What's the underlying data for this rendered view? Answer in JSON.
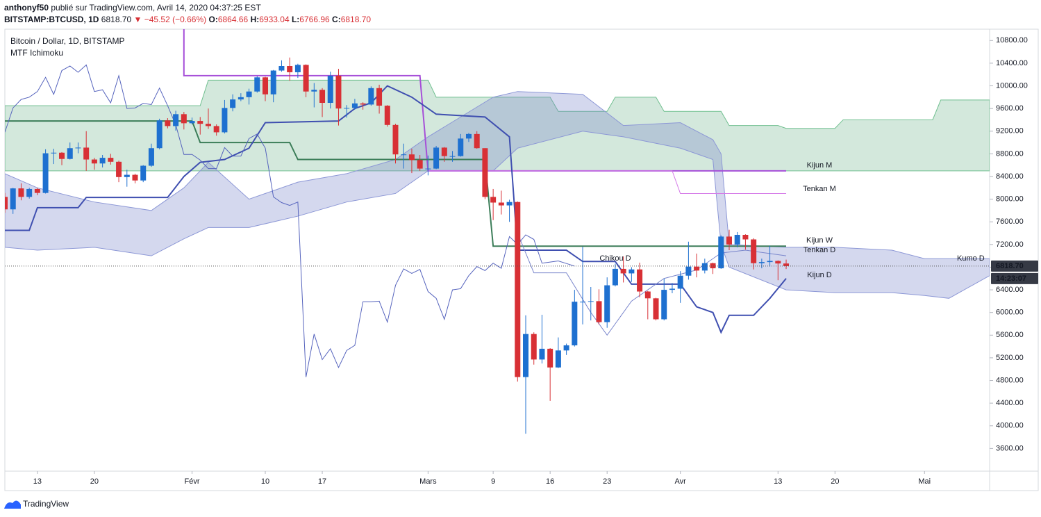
{
  "header": {
    "author": "anthonyf50",
    "published": "publié sur TradingView.com, Avril 14, 2020 04:37:25 EST",
    "symbol": "BITSTAMP:BTCUSD, 1D",
    "price": "6818.70",
    "change": "▼ −45.52 (−0.66%)",
    "quote": [
      {
        "key": "O:",
        "value": "6864.66"
      },
      {
        "key": "H:",
        "value": "6933.04"
      },
      {
        "key": "L:",
        "value": "6766.96"
      },
      {
        "key": "C:",
        "value": "6818.70"
      }
    ]
  },
  "legend": {
    "instrument": "Bitcoin / Dollar, 1D, BITSTAMP",
    "indicator": "MTF Ichimoku"
  },
  "footer": {
    "brand": "TradingView"
  },
  "chart_data": {
    "type": "candlestick",
    "x": [
      "01-09",
      "01-10",
      "01-11",
      "01-12",
      "01-13",
      "01-14",
      "01-15",
      "01-16",
      "01-17",
      "01-18",
      "01-19",
      "01-20",
      "01-21",
      "01-22",
      "01-23",
      "01-24",
      "01-25",
      "01-26",
      "01-27",
      "01-28",
      "01-29",
      "01-30",
      "01-31",
      "02-01",
      "02-02",
      "02-03",
      "02-04",
      "02-05",
      "02-06",
      "02-07",
      "02-08",
      "02-09",
      "02-10",
      "02-11",
      "02-12",
      "02-13",
      "02-14",
      "02-15",
      "02-16",
      "02-17",
      "02-18",
      "02-19",
      "02-20",
      "02-21",
      "02-22",
      "02-23",
      "02-24",
      "02-25",
      "02-26",
      "02-27",
      "02-28",
      "02-29",
      "03-01",
      "03-02",
      "03-03",
      "03-04",
      "03-05",
      "03-06",
      "03-07",
      "03-08",
      "03-09",
      "03-10",
      "03-11",
      "03-12",
      "03-13",
      "03-14",
      "03-15",
      "03-16",
      "03-17",
      "03-18",
      "03-19",
      "03-20",
      "03-21",
      "03-22",
      "03-23",
      "03-24",
      "03-25",
      "03-26",
      "03-27",
      "03-28",
      "03-29",
      "03-30",
      "03-31",
      "04-01",
      "04-02",
      "04-03",
      "04-04",
      "04-05",
      "04-06",
      "04-07",
      "04-08",
      "04-09",
      "04-10",
      "04-11",
      "04-12",
      "04-13",
      "04-14"
    ],
    "open": [
      8040,
      7820,
      8190,
      8040,
      8180,
      8110,
      8810,
      8820,
      8710,
      8900,
      8910,
      8700,
      8630,
      8730,
      8660,
      8390,
      8430,
      8330,
      8590,
      8900,
      9390,
      9290,
      9500,
      9340,
      9380,
      9330,
      9290,
      9180,
      9610,
      9760,
      9800,
      9900,
      10150,
      9850,
      10270,
      10350,
      10240,
      10370,
      9900,
      9930,
      9700,
      10180,
      9600,
      9610,
      9690,
      9670,
      9960,
      9650,
      9310,
      8790,
      8790,
      8690,
      8540,
      8540,
      8910,
      8760,
      8760,
      9070,
      9150,
      8900,
      8040,
      7940,
      7890,
      7950,
      4860,
      5620,
      5170,
      5360,
      5030,
      5330,
      5420,
      6190,
      6190,
      6200,
      5830,
      6480,
      6770,
      6690,
      6760,
      6370,
      6250,
      5880,
      6400,
      6420,
      6650,
      6810,
      6740,
      6870,
      6780,
      7340,
      7200,
      7370,
      7290,
      6870,
      6890,
      6910,
      6864.66
    ],
    "high": [
      8110,
      8200,
      8280,
      8200,
      8200,
      8880,
      8890,
      8830,
      9000,
      9000,
      9200,
      8730,
      8780,
      8800,
      8680,
      8520,
      8450,
      8600,
      8980,
      9420,
      9430,
      9560,
      9540,
      9440,
      9450,
      9600,
      9320,
      9750,
      9850,
      9870,
      9950,
      10170,
      10160,
      10280,
      10450,
      10500,
      10390,
      10380,
      10050,
      9960,
      10250,
      10300,
      9660,
      9770,
      9710,
      9990,
      10020,
      9660,
      9330,
      8980,
      8890,
      8780,
      8770,
      8940,
      8920,
      8850,
      9150,
      9170,
      9200,
      8900,
      8180,
      8150,
      7990,
      7960,
      5950,
      5650,
      5960,
      5370,
      5560,
      5450,
      6400,
      7160,
      6450,
      6410,
      6620,
      6860,
      6990,
      6800,
      6880,
      6380,
      6260,
      6600,
      6520,
      6730,
      7250,
      7040,
      6950,
      6880,
      7360,
      7460,
      7420,
      7380,
      7310,
      6950,
      7180,
      6920,
      6933.04
    ],
    "low": [
      7760,
      7740,
      7980,
      8010,
      8070,
      8100,
      8620,
      8600,
      8700,
      8810,
      8500,
      8520,
      8560,
      8610,
      8300,
      8220,
      8280,
      8300,
      8570,
      8880,
      9250,
      9210,
      9230,
      9320,
      9140,
      9240,
      9120,
      9160,
      9550,
      9730,
      9670,
      9880,
      9730,
      9710,
      10250,
      10090,
      10140,
      9800,
      9620,
      9450,
      9600,
      9300,
      9440,
      9580,
      9580,
      9650,
      9510,
      9280,
      8630,
      8540,
      8460,
      8500,
      8420,
      8530,
      8660,
      8660,
      8750,
      9010,
      8890,
      8000,
      7630,
      7730,
      7600,
      4780,
      3860,
      5080,
      5100,
      4440,
      5020,
      5250,
      5400,
      5790,
      5860,
      5790,
      5730,
      6460,
      6530,
      6540,
      6270,
      5880,
      5860,
      5860,
      6340,
      6170,
      6580,
      6620,
      6690,
      6680,
      6770,
      7100,
      7150,
      7110,
      6760,
      6780,
      6810,
      6570,
      6766.96
    ],
    "close": [
      7820,
      8190,
      8040,
      8180,
      8110,
      8810,
      8820,
      8710,
      8900,
      8910,
      8700,
      8630,
      8730,
      8660,
      8390,
      8430,
      8330,
      8590,
      8900,
      9390,
      9290,
      9500,
      9340,
      9380,
      9330,
      9290,
      9180,
      9610,
      9760,
      9800,
      9900,
      10150,
      9850,
      10270,
      10350,
      10240,
      10370,
      9900,
      9930,
      9700,
      10180,
      9600,
      9610,
      9690,
      9670,
      9960,
      9650,
      9310,
      8790,
      8790,
      8690,
      8540,
      8540,
      8910,
      8760,
      8760,
      9070,
      9150,
      8900,
      8040,
      7940,
      7890,
      7950,
      4860,
      5620,
      5170,
      5360,
      5030,
      5330,
      5420,
      6190,
      6190,
      6200,
      5830,
      6480,
      6770,
      6690,
      6760,
      6370,
      6250,
      5880,
      6400,
      6420,
      6650,
      6810,
      6740,
      6870,
      6780,
      7340,
      7200,
      7370,
      7290,
      6870,
      6890,
      6910,
      6864.66,
      6818.7
    ],
    "up_color": "#1e70d0",
    "down_color": "#d83035",
    "xlim": [
      "01-09",
      "05-09"
    ],
    "xticks": [
      {
        "value": "01-13",
        "label": "13"
      },
      {
        "value": "01-20",
        "label": "20"
      },
      {
        "value": "02-01",
        "label": "Févr"
      },
      {
        "value": "02-10",
        "label": "10"
      },
      {
        "value": "02-17",
        "label": "17"
      },
      {
        "value": "03-01",
        "label": "Mars"
      },
      {
        "value": "03-09",
        "label": "9"
      },
      {
        "value": "03-16",
        "label": "16"
      },
      {
        "value": "03-23",
        "label": "23"
      },
      {
        "value": "04-01",
        "label": "Avr"
      },
      {
        "value": "04-13",
        "label": "13"
      },
      {
        "value": "04-20",
        "label": "20"
      },
      {
        "value": "05-01",
        "label": "Mai"
      }
    ],
    "ylim": [
      3200,
      11000
    ],
    "yticks": [
      {
        "value": 3600,
        "label": "3600.00"
      },
      {
        "value": 4000,
        "label": "4000.00"
      },
      {
        "value": 4400,
        "label": "4400.00"
      },
      {
        "value": 4800,
        "label": "4800.00"
      },
      {
        "value": 5200,
        "label": "5200.00"
      },
      {
        "value": 5600,
        "label": "5600.00"
      },
      {
        "value": 6000,
        "label": "6000.00"
      },
      {
        "value": 6400,
        "label": "6400.00"
      },
      {
        "value": 6800,
        "label": "6800.00"
      },
      {
        "value": 7200,
        "label": "7200.00"
      },
      {
        "value": 7600,
        "label": "7600.00"
      },
      {
        "value": 8000,
        "label": "8000.00"
      },
      {
        "value": 8400,
        "label": "8400.00"
      },
      {
        "value": 8800,
        "label": "8800.00"
      },
      {
        "value": 9200,
        "label": "9200.00"
      },
      {
        "value": 9600,
        "label": "9600.00"
      },
      {
        "value": 10000,
        "label": "10000.00"
      },
      {
        "value": 10400,
        "label": "10400.00"
      },
      {
        "value": 10800,
        "label": "10800.00"
      }
    ],
    "last_price": {
      "value": 6818.7,
      "label": "6818.70"
    },
    "countdown": "14:23:07",
    "bands": [
      {
        "color": "#d3e8dc",
        "edge": "#6fbf8f",
        "x": [
          "01-09",
          "02-02",
          "02-03",
          "03-01",
          "03-02",
          "03-16",
          "03-17",
          "03-23",
          "03-24",
          "03-29",
          "03-30",
          "04-06",
          "04-07",
          "04-13",
          "04-14",
          "04-20",
          "04-21",
          "05-02",
          "05-03",
          "05-09"
        ],
        "upper": [
          9650,
          9650,
          10100,
          10100,
          9800,
          9800,
          9550,
          9550,
          9800,
          9800,
          9550,
          9550,
          9300,
          9300,
          9250,
          9250,
          9400,
          9400,
          9750,
          9750
        ],
        "lower": [
          8500,
          8500,
          8500,
          8500,
          8500,
          8500,
          8500,
          8500,
          8500,
          8500,
          8500,
          8500,
          8500,
          8500,
          8500,
          8500,
          8500,
          8500,
          8500,
          8500
        ]
      },
      {
        "name": "Kumo D",
        "color": "rgba(121,134,203,0.32)",
        "edge": "#8c97d6",
        "x": [
          "01-09",
          "01-13",
          "01-20",
          "01-27",
          "01-31",
          "02-03",
          "02-08",
          "02-14",
          "02-20",
          "02-26",
          "03-01",
          "03-05",
          "03-09",
          "03-12",
          "03-20",
          "03-25",
          "04-01",
          "04-05",
          "04-06",
          "04-07",
          "04-14",
          "04-20",
          "04-27",
          "05-01",
          "05-04",
          "05-09"
        ],
        "upper": [
          8450,
          8200,
          7950,
          7800,
          8200,
          8650,
          8000,
          8300,
          8450,
          8700,
          9100,
          9450,
          9800,
          9900,
          9850,
          9300,
          9350,
          9050,
          8800,
          7200,
          7150,
          7150,
          7100,
          6950,
          6950,
          6950
        ],
        "lower": [
          7150,
          7100,
          7150,
          7000,
          7300,
          7500,
          7500,
          7700,
          7950,
          8100,
          8500,
          8500,
          8500,
          8900,
          9200,
          9100,
          8900,
          8700,
          7200,
          6800,
          6400,
          6350,
          6350,
          6300,
          6250,
          6650
        ]
      }
    ],
    "lines": [
      {
        "name": "Kijun M",
        "color": "#a64fd8",
        "width": 2,
        "x": [
          "01-31",
          "01-31",
          "02-29",
          "03-01",
          "04-14"
        ],
        "values": [
          11000,
          10180,
          10180,
          8500,
          8500
        ]
      },
      {
        "name": "Tenkan M",
        "color": "#d57be8",
        "width": 1,
        "x": [
          "03-01",
          "03-31",
          "04-01",
          "04-14"
        ],
        "values": [
          8500,
          8500,
          8100,
          8100
        ]
      },
      {
        "name": "Kijun W",
        "color": "#3b7d58",
        "width": 2,
        "x": [
          "01-09",
          "02-01",
          "02-02",
          "02-13",
          "02-14",
          "03-08",
          "03-09",
          "04-14"
        ],
        "values": [
          9380,
          9380,
          9000,
          9000,
          8700,
          8700,
          7170,
          7170
        ]
      },
      {
        "name": "Kijun D",
        "color": "#3f4fb0",
        "width": 2,
        "x": [
          "01-09",
          "01-12",
          "01-13",
          "01-18",
          "01-19",
          "01-29",
          "01-31",
          "02-02",
          "02-05",
          "02-08",
          "02-10",
          "02-19",
          "02-21",
          "02-23",
          "02-25",
          "02-28",
          "03-02",
          "03-08",
          "03-11",
          "03-12",
          "03-18",
          "03-20",
          "03-24",
          "03-26",
          "04-01",
          "04-03",
          "04-05",
          "04-06",
          "04-07",
          "04-10",
          "04-12",
          "04-14"
        ],
        "values": [
          7450,
          7450,
          7850,
          7850,
          8030,
          8030,
          8400,
          8650,
          8700,
          8900,
          9350,
          9380,
          9600,
          9700,
          10000,
          9800,
          9500,
          9450,
          9100,
          7100,
          7100,
          6900,
          6900,
          6500,
          6500,
          6100,
          6000,
          5650,
          5950,
          5950,
          6250,
          6600
        ]
      },
      {
        "name": "Tenkan D",
        "color": "#7a86cc",
        "width": 1,
        "x": [
          "03-12",
          "03-14",
          "03-18",
          "03-21",
          "03-23",
          "03-26",
          "03-30",
          "04-03",
          "04-06",
          "04-09",
          "04-14"
        ],
        "values": [
          7400,
          6700,
          6700,
          6000,
          5600,
          6200,
          6600,
          6750,
          7050,
          7100,
          7000
        ]
      },
      {
        "name": "Chikou D",
        "color": "#5563bd",
        "width": 1,
        "values": [
          9180,
          9610,
          9760,
          9800,
          9900,
          10150,
          9850,
          10270,
          10350,
          10240,
          10370,
          9900,
          9930,
          9700,
          10180,
          9600,
          9610,
          9690,
          9670,
          9960,
          9650,
          9310,
          8790,
          8790,
          8690,
          8540,
          8540,
          8910,
          8760,
          8760,
          9070,
          9150,
          8900,
          8040,
          7940,
          7890,
          7950,
          4860,
          5620,
          5170,
          5360,
          5030,
          5330,
          5420,
          6190,
          6190,
          6200,
          5830,
          6480,
          6770,
          6690,
          6760,
          6370,
          6250,
          5880,
          6400,
          6420,
          6650,
          6810,
          6740,
          6870,
          6780,
          7340,
          7200,
          7370,
          7290,
          6870,
          6890,
          6910,
          6864.66,
          6818.7,
          null,
          null,
          null,
          null,
          null,
          null,
          null,
          null,
          null,
          null,
          null,
          null,
          null,
          null,
          null,
          null,
          null,
          null,
          null,
          null,
          null,
          null,
          null,
          null,
          null,
          null
        ]
      }
    ]
  }
}
